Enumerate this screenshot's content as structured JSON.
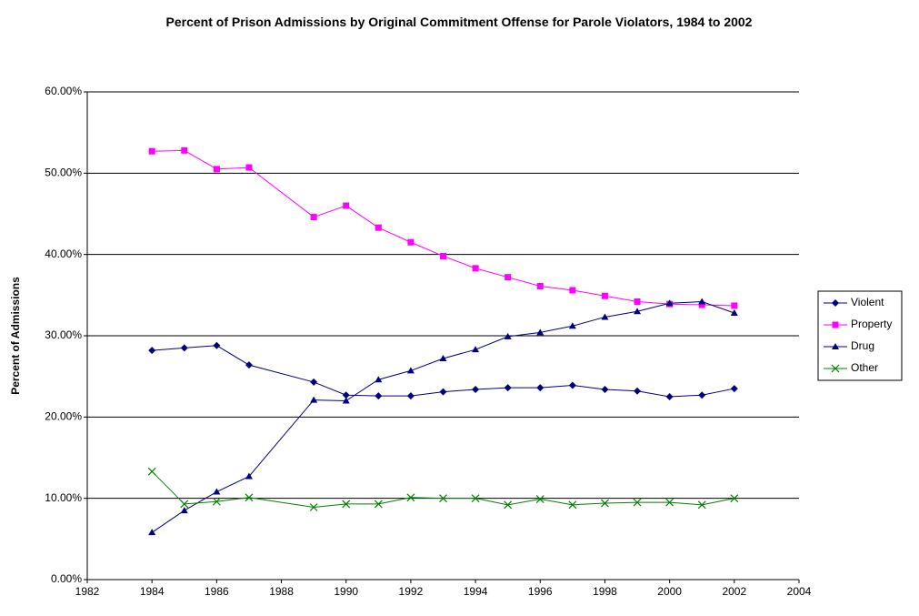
{
  "chart_data": {
    "type": "line",
    "title": "Percent of Prison Admissions by Original Commitment Offense for Parole Violators, 1984 to 2002",
    "y_label": "Percent of Admissions",
    "x": [
      1984,
      1985,
      1986,
      1987,
      1989,
      1990,
      1991,
      1992,
      1993,
      1994,
      1995,
      1996,
      1997,
      1998,
      1999,
      2000,
      2001,
      2002
    ],
    "series": [
      {
        "name": "Violent",
        "color": "#000080",
        "marker": "diamond",
        "values": [
          28.2,
          28.5,
          28.8,
          26.4,
          24.3,
          22.7,
          22.6,
          22.6,
          23.1,
          23.4,
          23.6,
          23.6,
          23.9,
          23.4,
          23.2,
          22.5,
          22.7,
          23.5
        ]
      },
      {
        "name": "Property",
        "color": "#ff00ff",
        "marker": "square",
        "values": [
          52.7,
          52.8,
          50.5,
          50.7,
          44.6,
          46.0,
          43.3,
          41.5,
          39.8,
          38.3,
          37.2,
          36.1,
          35.6,
          34.9,
          34.2,
          33.9,
          33.8,
          33.7
        ]
      },
      {
        "name": "Drug",
        "color": "#000080",
        "marker": "triangle",
        "values": [
          5.8,
          8.5,
          10.8,
          12.7,
          22.1,
          22.0,
          24.6,
          25.7,
          27.2,
          28.3,
          29.9,
          30.4,
          31.2,
          32.3,
          33.0,
          34.0,
          34.2,
          32.8
        ]
      },
      {
        "name": "Other",
        "color": "#008000",
        "marker": "x",
        "values": [
          13.3,
          9.3,
          9.6,
          10.1,
          8.9,
          9.3,
          9.3,
          10.1,
          10.0,
          10.0,
          9.2,
          9.9,
          9.2,
          9.4,
          9.5,
          9.5,
          9.2,
          10.0
        ]
      }
    ],
    "xlim": [
      1982,
      2004
    ],
    "xticks": [
      1982,
      1984,
      1986,
      1988,
      1990,
      1992,
      1994,
      1996,
      1998,
      2000,
      2002,
      2004
    ],
    "ylim": [
      0,
      60
    ],
    "yticks": [
      {
        "value": 0,
        "label": "0.00%"
      },
      {
        "value": 10,
        "label": "10.00%"
      },
      {
        "value": 20,
        "label": "20.00%"
      },
      {
        "value": 30,
        "label": "30.00%"
      },
      {
        "value": 40,
        "label": "40.00%"
      },
      {
        "value": 50,
        "label": "50.00%"
      },
      {
        "value": 60,
        "label": "60.00%"
      }
    ],
    "grid": true,
    "legend": "right"
  }
}
